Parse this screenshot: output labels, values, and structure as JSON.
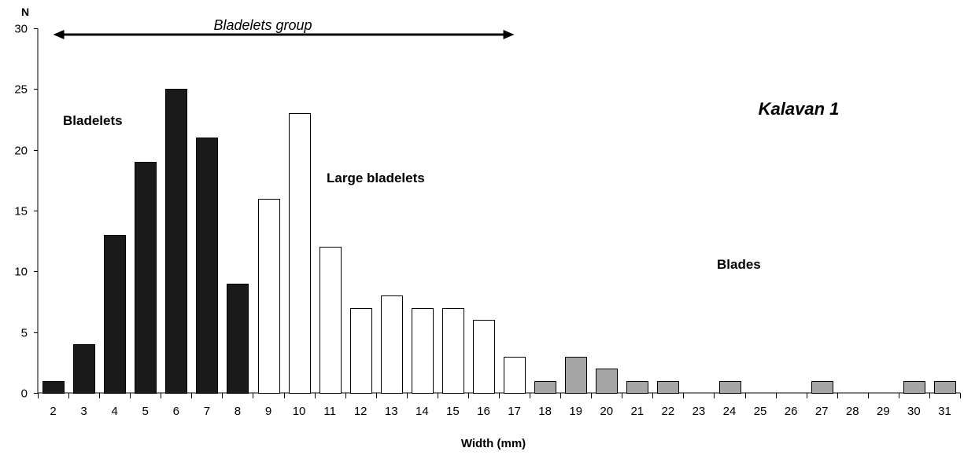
{
  "chart_data": {
    "type": "bar",
    "title": "Kalavan 1",
    "xlabel": "Width (mm)",
    "ylabel": "N",
    "ylim": [
      0,
      30
    ],
    "yticks": [
      0,
      5,
      10,
      15,
      20,
      25,
      30
    ],
    "categories": [
      "2",
      "3",
      "4",
      "5",
      "6",
      "7",
      "8",
      "9",
      "10",
      "11",
      "12",
      "13",
      "14",
      "15",
      "16",
      "17",
      "18",
      "19",
      "20",
      "21",
      "22",
      "23",
      "24",
      "25",
      "26",
      "27",
      "28",
      "29",
      "30",
      "31"
    ],
    "series": [
      {
        "name": "Bladelets",
        "color": "#1a1a1a",
        "values": [
          1,
          4,
          13,
          19,
          25,
          21,
          9,
          0,
          0,
          0,
          0,
          0,
          0,
          0,
          0,
          0,
          0,
          0,
          0,
          0,
          0,
          0,
          0,
          0,
          0,
          0,
          0,
          0,
          0,
          0
        ]
      },
      {
        "name": "Large bladelets",
        "color": "#ffffff",
        "values": [
          0,
          0,
          0,
          0,
          0,
          0,
          0,
          16,
          23,
          12,
          7,
          8,
          7,
          7,
          6,
          3,
          0,
          0,
          0,
          0,
          0,
          0,
          0,
          0,
          0,
          0,
          0,
          0,
          0,
          0
        ]
      },
      {
        "name": "Blades",
        "color": "#a6a6a6",
        "values": [
          0,
          0,
          0,
          0,
          0,
          0,
          0,
          0,
          0,
          0,
          0,
          0,
          0,
          0,
          0,
          0,
          1,
          3,
          2,
          1,
          1,
          0,
          1,
          0,
          0,
          1,
          0,
          0,
          1,
          1
        ]
      }
    ],
    "annotations": {
      "group_label": "Bladelets group",
      "group_range": [
        "2",
        "17"
      ]
    },
    "grid": false,
    "legend": "none"
  }
}
